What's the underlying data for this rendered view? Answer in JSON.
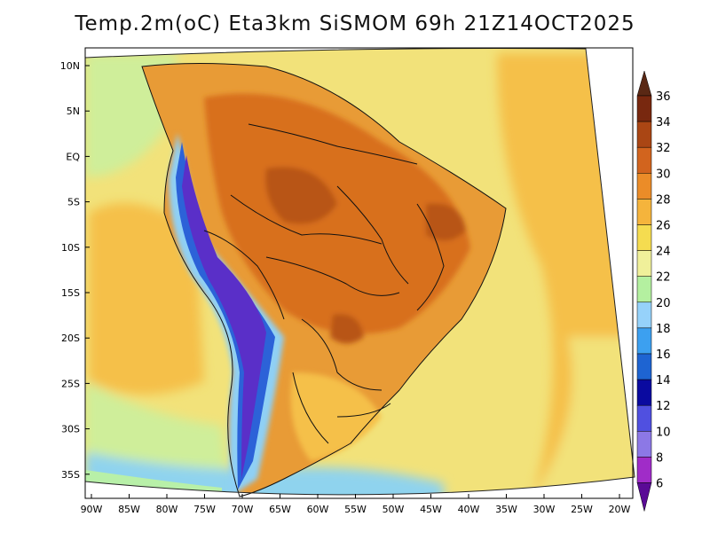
{
  "title": "Temp.2m(oC) Eta3km SiSMOM 69h 21Z14OCT2025",
  "lat_labels": [
    "10N",
    "5N",
    "EQ",
    "5S",
    "10S",
    "15S",
    "20S",
    "25S",
    "30S",
    "35S"
  ],
  "lon_labels": [
    "90W",
    "85W",
    "80W",
    "75W",
    "70W",
    "65W",
    "60W",
    "55W",
    "50W",
    "45W",
    "40W",
    "35W",
    "30W",
    "25W",
    "20W"
  ],
  "colorbar": {
    "labels": [
      "6",
      "8",
      "10",
      "12",
      "14",
      "16",
      "18",
      "20",
      "22",
      "24",
      "26",
      "28",
      "30",
      "32",
      "34",
      "36"
    ],
    "colors": [
      "#6a0fa8",
      "#a02cc8",
      "#8c78e6",
      "#5050e0",
      "#0a0aa0",
      "#1e64d2",
      "#3ca0f0",
      "#96d2fa",
      "#b4f0a0",
      "#f0f09a",
      "#f5dc50",
      "#f5b43c",
      "#eb8c28",
      "#d2641e",
      "#aa4614",
      "#78280f"
    ],
    "under_color": "#5a0a96",
    "over_color": "#5a2814"
  },
  "map_colors": {
    "ocean_warm": "#f5c04a",
    "ocean_mid": "#f2e27a",
    "ocean_cool": "#cfee9a",
    "ocean_cold": "#8fd3ee",
    "ocean_south": "#b8f0a8",
    "land_hot": "#d8701f",
    "land_very_hot": "#b85418",
    "land_warm": "#e89b36",
    "andes_high": "#5a2fc8",
    "andes_mid": "#2c62d8",
    "andes_low": "#8fd0f5",
    "borders": "#111111"
  }
}
